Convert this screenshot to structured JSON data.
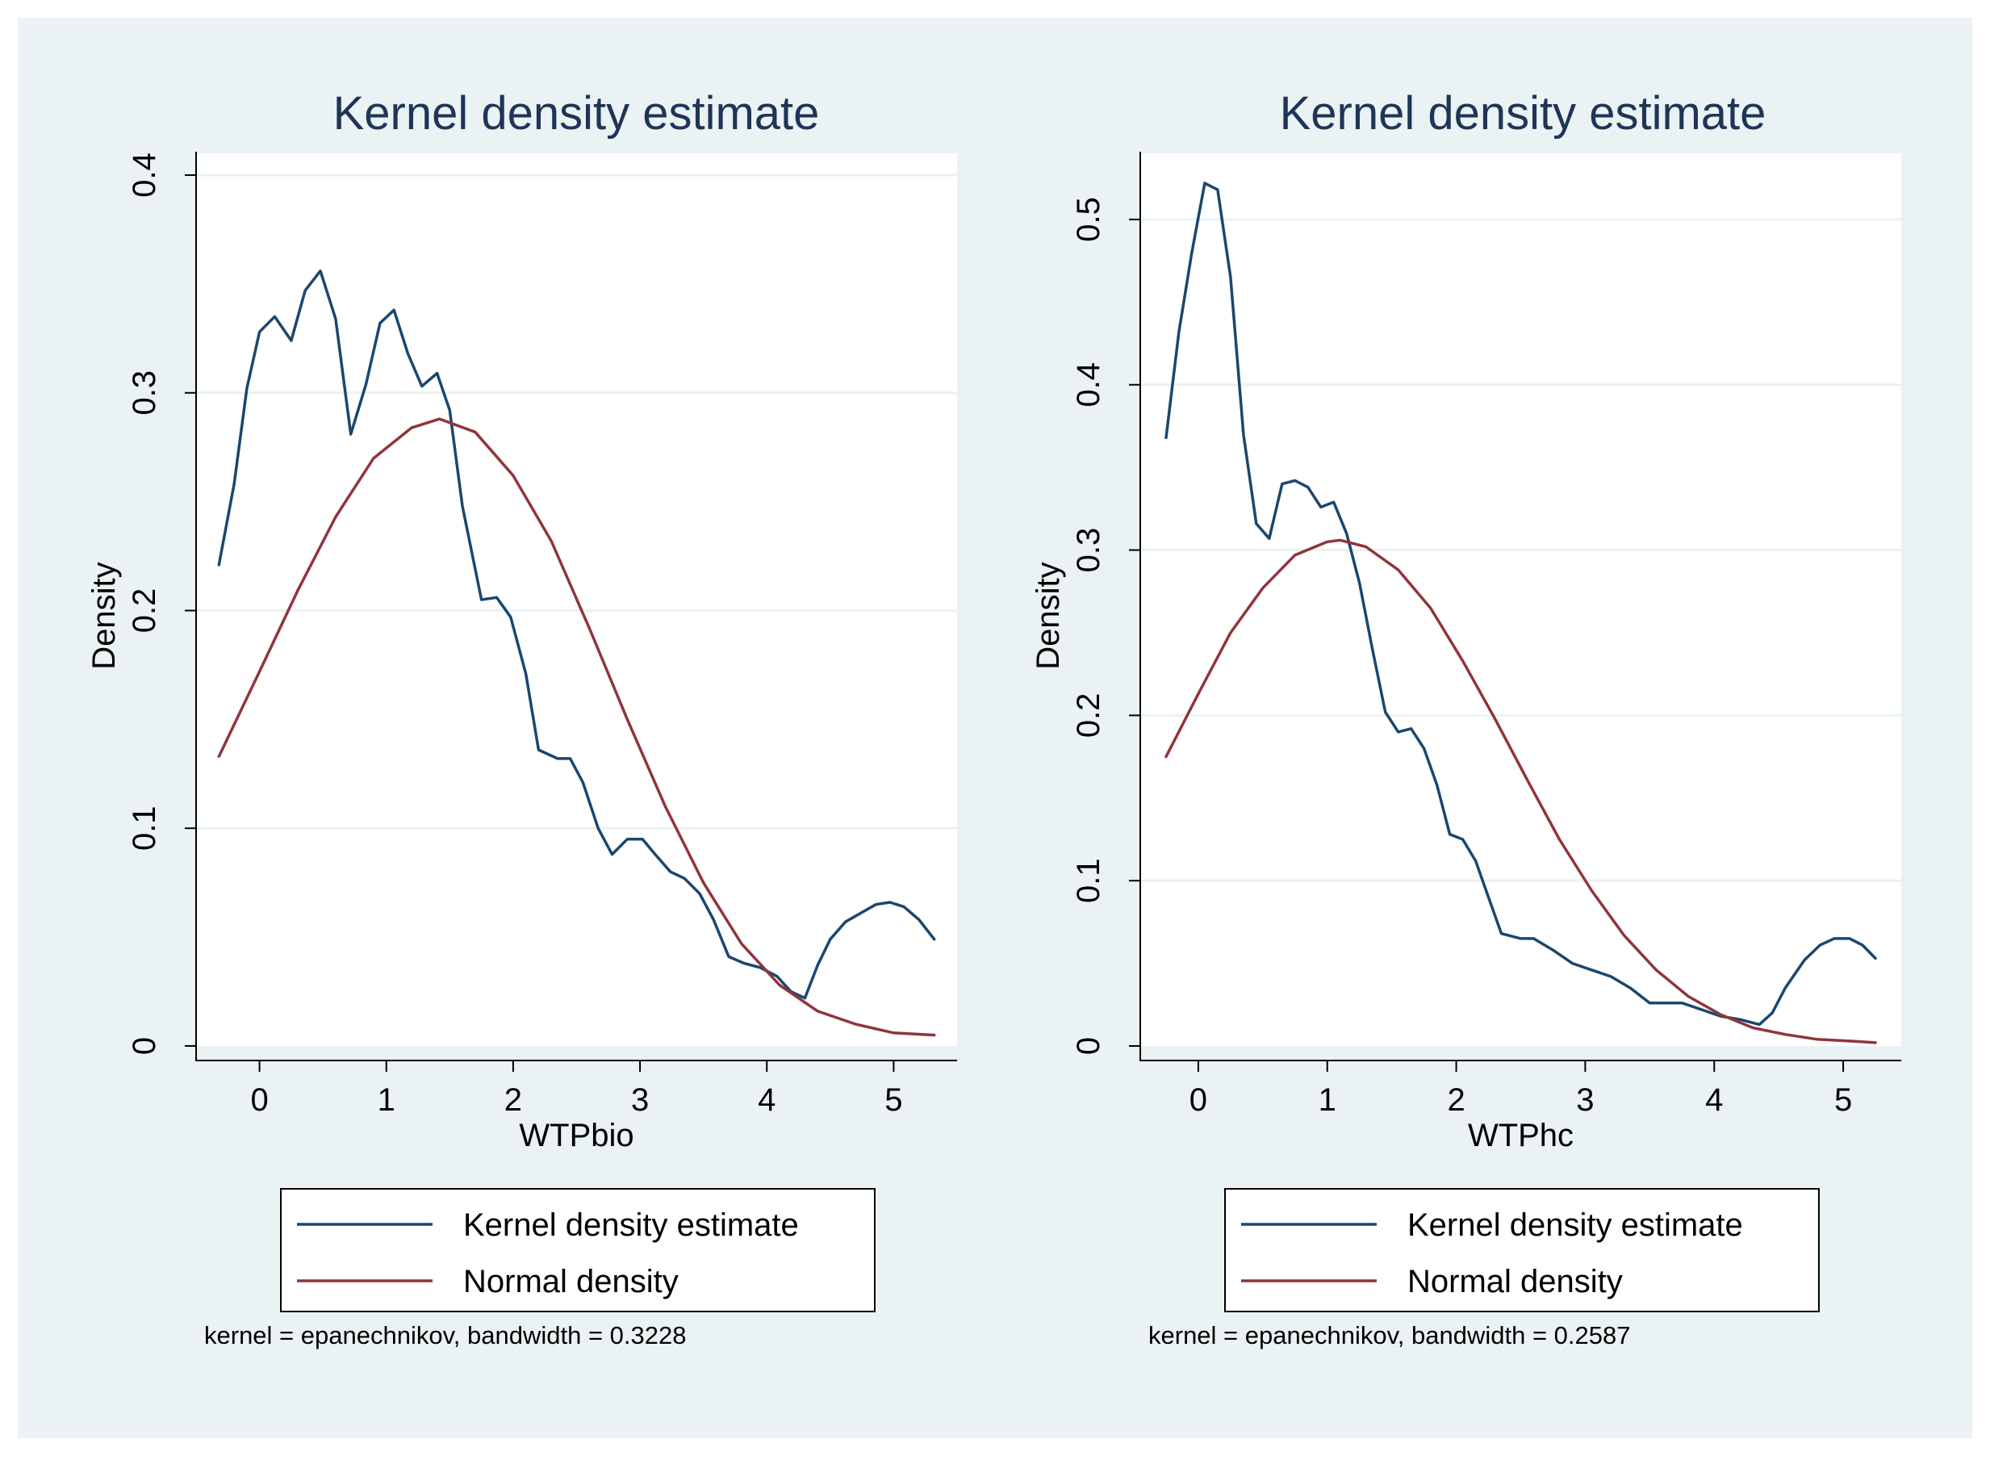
{
  "chart_data": [
    {
      "type": "line",
      "title": "Kernel density estimate",
      "xlabel": "WTPbio",
      "ylabel": "Density",
      "xlim": [
        -0.5,
        5.5
      ],
      "ylim": [
        0,
        0.41
      ],
      "x_ticks": [
        0,
        1,
        2,
        3,
        4,
        5
      ],
      "x_tick_labels": [
        "0",
        "1",
        "2",
        "3",
        "4",
        "5"
      ],
      "y_ticks": [
        0,
        0.1,
        0.2,
        0.3,
        0.4
      ],
      "y_tick_labels": [
        "0",
        "0.1",
        "0.2",
        "0.3",
        "0.4"
      ],
      "grid": true,
      "legend_position": "bottom",
      "note": "kernel = epanechnikov, bandwidth = 0.3228",
      "series": [
        {
          "name": "Kernel density estimate",
          "color": "#1a476f",
          "x": [
            -0.32,
            -0.2,
            -0.1,
            0.0,
            0.12,
            0.25,
            0.36,
            0.48,
            0.6,
            0.72,
            0.84,
            0.95,
            1.06,
            1.17,
            1.28,
            1.4,
            1.5,
            1.6,
            1.75,
            1.87,
            1.98,
            2.1,
            2.2,
            2.35,
            2.45,
            2.55,
            2.67,
            2.78,
            2.9,
            3.02,
            3.12,
            3.24,
            3.35,
            3.47,
            3.58,
            3.7,
            3.82,
            3.95,
            4.08,
            4.19,
            4.3,
            4.4,
            4.5,
            4.62,
            4.74,
            4.86,
            4.97,
            5.08,
            5.2,
            5.32
          ],
          "y": [
            0.221,
            0.258,
            0.302,
            0.328,
            0.335,
            0.324,
            0.347,
            0.356,
            0.334,
            0.281,
            0.304,
            0.332,
            0.338,
            0.318,
            0.303,
            0.309,
            0.292,
            0.248,
            0.205,
            0.206,
            0.197,
            0.171,
            0.136,
            0.132,
            0.132,
            0.121,
            0.1,
            0.088,
            0.095,
            0.095,
            0.088,
            0.08,
            0.077,
            0.07,
            0.058,
            0.041,
            0.038,
            0.036,
            0.032,
            0.025,
            0.022,
            0.037,
            0.049,
            0.057,
            0.061,
            0.065,
            0.066,
            0.064,
            0.058,
            0.049
          ]
        },
        {
          "name": "Normal density",
          "color": "#90353b",
          "x": [
            -0.32,
            0.0,
            0.3,
            0.6,
            0.9,
            1.2,
            1.42,
            1.7,
            2.0,
            2.3,
            2.6,
            2.9,
            3.2,
            3.5,
            3.8,
            4.1,
            4.4,
            4.7,
            5.0,
            5.32
          ],
          "y": [
            0.133,
            0.172,
            0.209,
            0.243,
            0.27,
            0.284,
            0.288,
            0.282,
            0.262,
            0.232,
            0.192,
            0.15,
            0.11,
            0.075,
            0.047,
            0.028,
            0.016,
            0.01,
            0.006,
            0.005
          ]
        }
      ]
    },
    {
      "type": "line",
      "title": "Kernel density estimate",
      "xlabel": "WTPhc",
      "ylabel": "Density",
      "xlim": [
        -0.45,
        5.45
      ],
      "ylim": [
        0,
        0.54
      ],
      "x_ticks": [
        0,
        1,
        2,
        3,
        4,
        5
      ],
      "x_tick_labels": [
        "0",
        "1",
        "2",
        "3",
        "4",
        "5"
      ],
      "y_ticks": [
        0,
        0.1,
        0.2,
        0.3,
        0.4,
        0.5
      ],
      "y_tick_labels": [
        "0",
        "0.1",
        "0.2",
        "0.3",
        "0.4",
        "0.5"
      ],
      "grid": true,
      "legend_position": "bottom",
      "note": "kernel = epanechnikov, bandwidth = 0.2587",
      "series": [
        {
          "name": "Kernel density estimate",
          "color": "#1a476f",
          "x": [
            -0.25,
            -0.15,
            -0.05,
            0.05,
            0.15,
            0.25,
            0.35,
            0.45,
            0.55,
            0.65,
            0.75,
            0.85,
            0.95,
            1.05,
            1.15,
            1.25,
            1.35,
            1.45,
            1.55,
            1.65,
            1.75,
            1.85,
            1.95,
            2.05,
            2.15,
            2.25,
            2.35,
            2.5,
            2.6,
            2.75,
            2.9,
            3.05,
            3.2,
            3.35,
            3.5,
            3.6,
            3.75,
            3.9,
            4.05,
            4.2,
            4.35,
            4.45,
            4.55,
            4.7,
            4.82,
            4.93,
            5.05,
            5.15,
            5.25
          ],
          "y": [
            0.368,
            0.432,
            0.48,
            0.522,
            0.518,
            0.465,
            0.37,
            0.316,
            0.307,
            0.34,
            0.342,
            0.338,
            0.326,
            0.329,
            0.31,
            0.28,
            0.24,
            0.202,
            0.19,
            0.192,
            0.18,
            0.158,
            0.128,
            0.125,
            0.112,
            0.09,
            0.068,
            0.065,
            0.065,
            0.058,
            0.05,
            0.046,
            0.042,
            0.035,
            0.026,
            0.026,
            0.026,
            0.022,
            0.018,
            0.016,
            0.013,
            0.02,
            0.035,
            0.052,
            0.061,
            0.065,
            0.065,
            0.061,
            0.053
          ]
        },
        {
          "name": "Normal density",
          "color": "#90353b",
          "x": [
            -0.25,
            0.0,
            0.25,
            0.5,
            0.75,
            1.0,
            1.1,
            1.3,
            1.55,
            1.8,
            2.05,
            2.3,
            2.55,
            2.8,
            3.05,
            3.3,
            3.55,
            3.8,
            4.05,
            4.3,
            4.55,
            4.8,
            5.05,
            5.25
          ],
          "y": [
            0.175,
            0.213,
            0.25,
            0.277,
            0.297,
            0.305,
            0.306,
            0.302,
            0.288,
            0.265,
            0.233,
            0.198,
            0.161,
            0.125,
            0.094,
            0.067,
            0.046,
            0.03,
            0.019,
            0.011,
            0.007,
            0.004,
            0.003,
            0.002
          ]
        }
      ]
    }
  ],
  "colors": {
    "outer_background": "#eaf2f3",
    "plot_background": "#ffffff",
    "grid": "#eaf2f3",
    "axis": "#000000",
    "title": "#1e3557",
    "text": "#000000",
    "kernel_line": "#1a476f",
    "normal_line": "#90353b"
  }
}
